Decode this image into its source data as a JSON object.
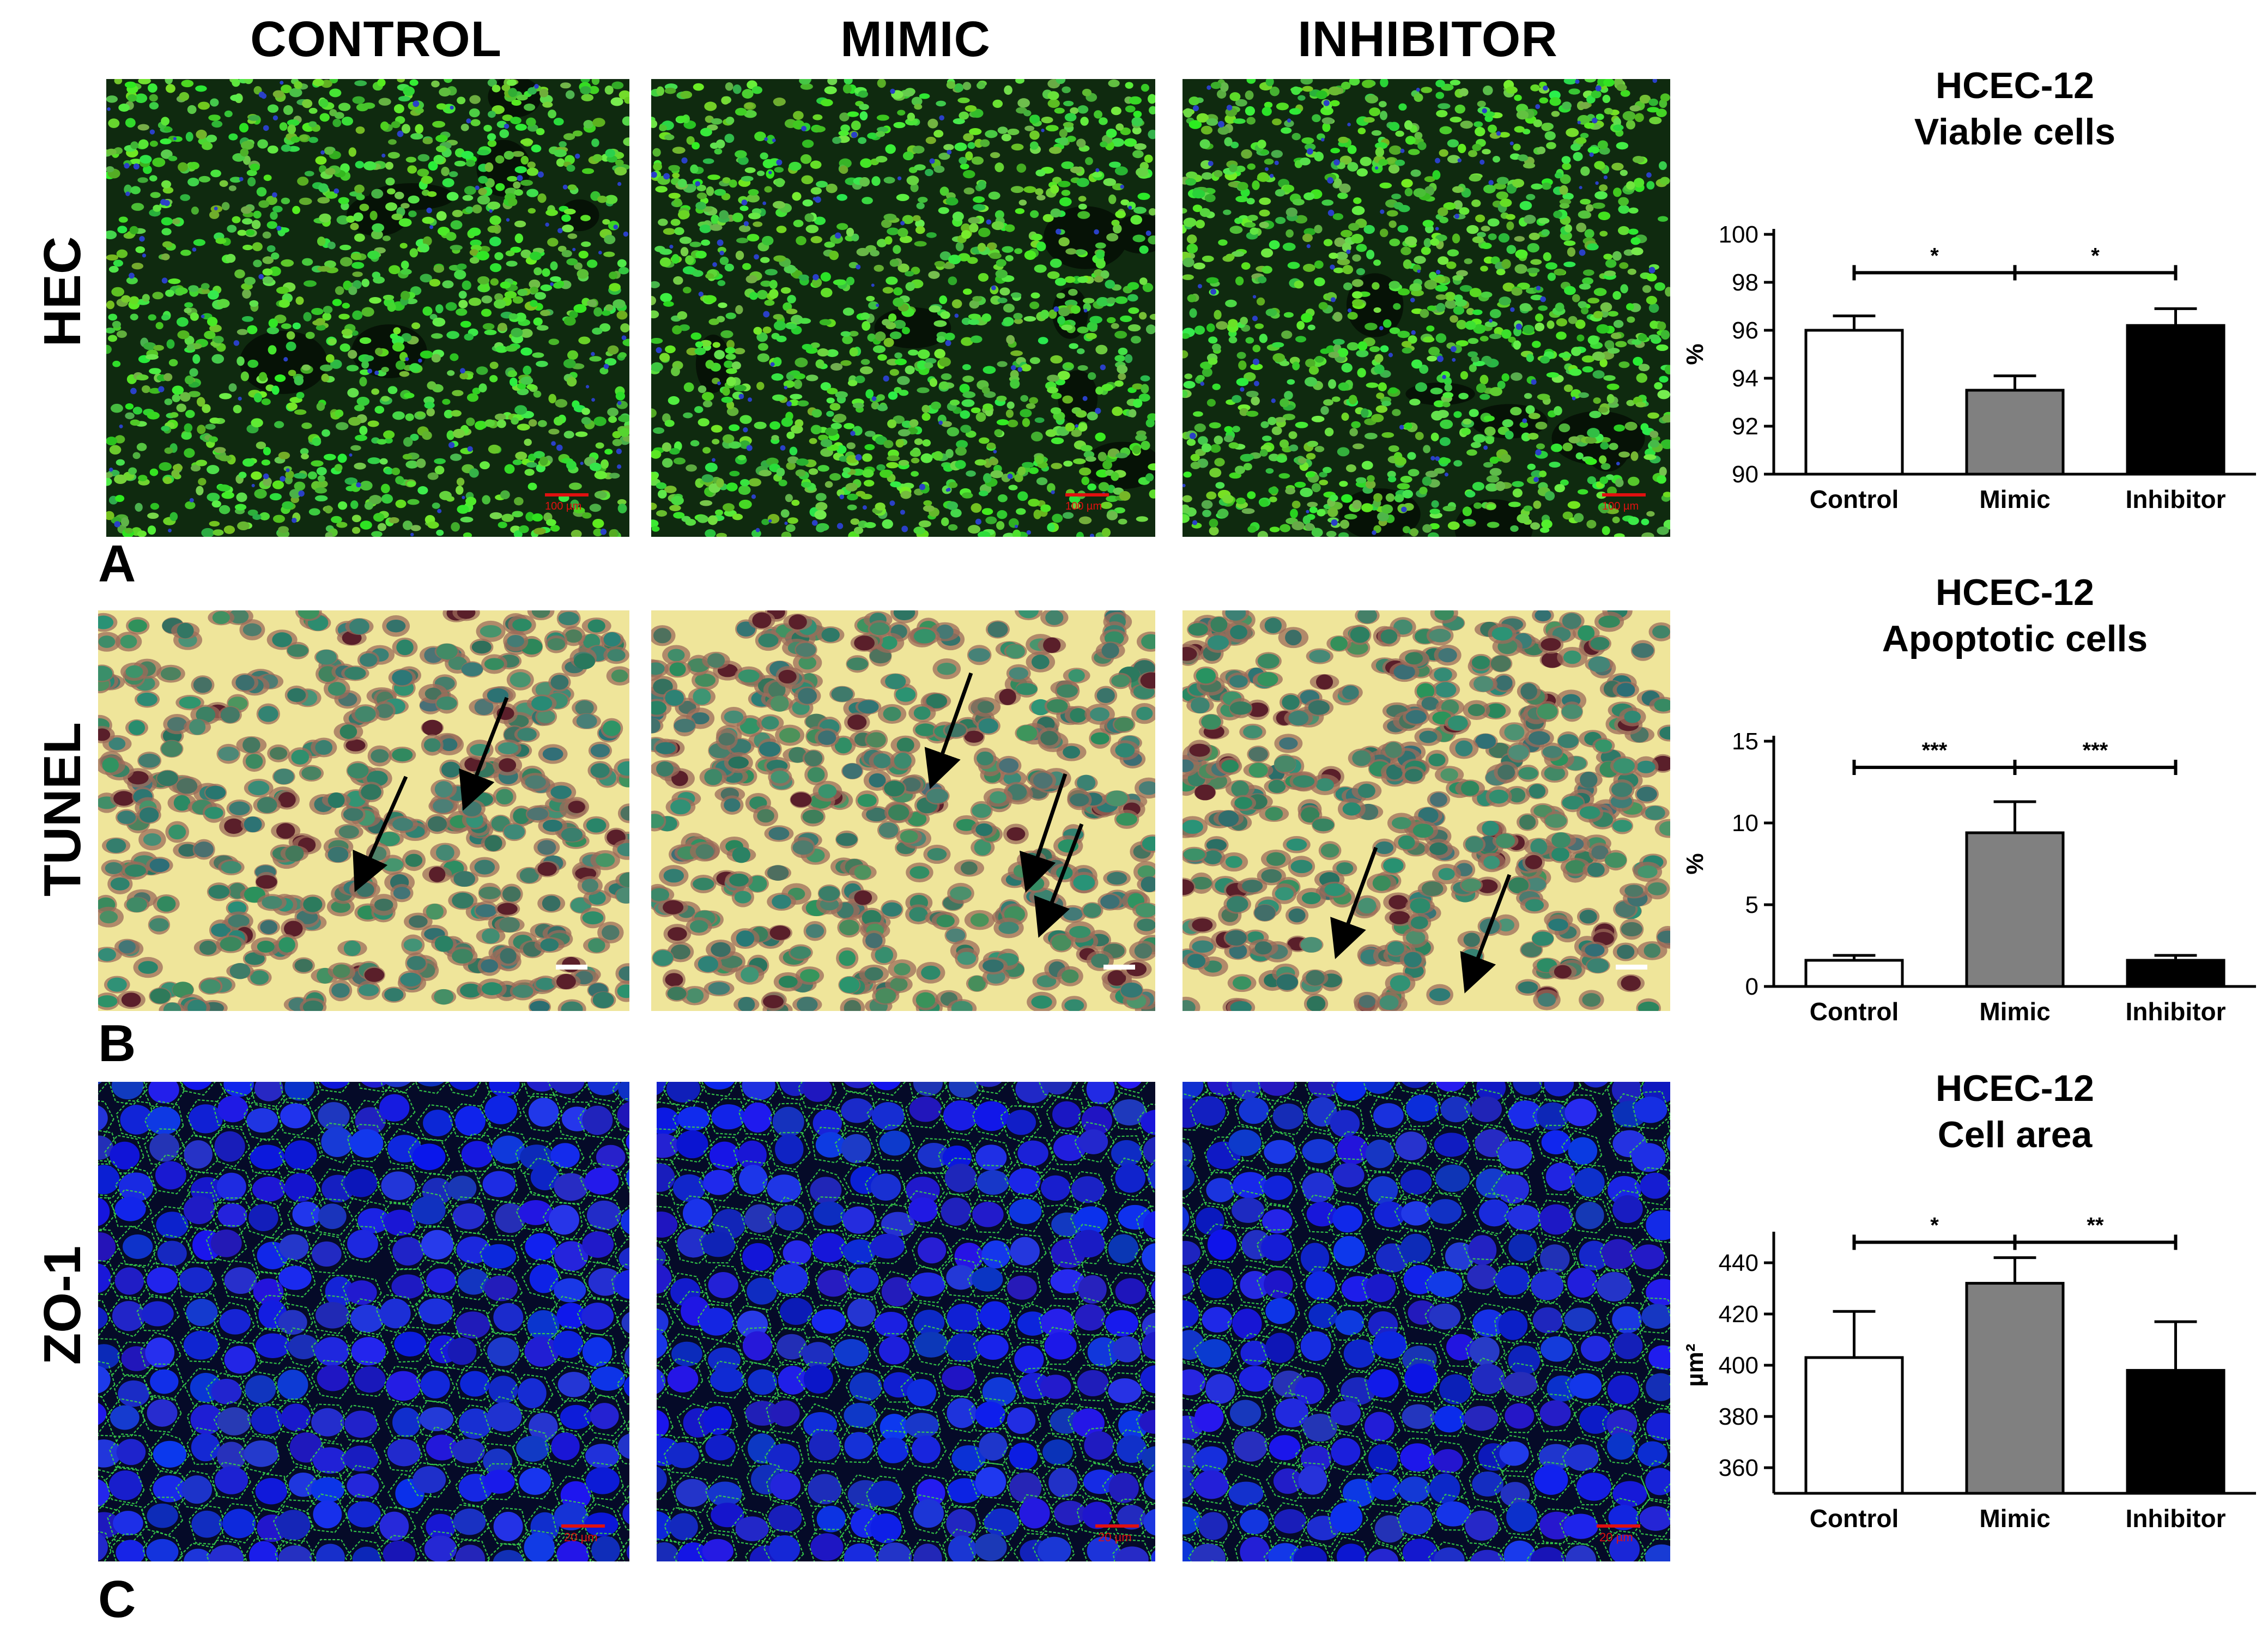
{
  "columns": [
    "CONTROL",
    "MIMIC",
    "INHIBITOR"
  ],
  "rows": [
    {
      "label": "HEC",
      "panel": "A"
    },
    {
      "label": "TUNEL",
      "panel": "B"
    },
    {
      "label": "ZO-1",
      "panel": "C"
    }
  ],
  "micrographs": {
    "hec_scale": "100 µm",
    "zo1_scale": "20 µm"
  },
  "colors": {
    "control": "#ffffff",
    "mimic": "#808080",
    "inhibitor": "#000000",
    "hec_bg": "#0f2a0f",
    "tunel_bg": "#efe59a",
    "zo1_bg": "#050a28"
  },
  "chart_data": [
    {
      "type": "bar",
      "title": "HCEC-12",
      "subtitle": "Viable cells",
      "ylabel": "%",
      "categories": [
        "Control",
        "Mimic",
        "Inhibitor"
      ],
      "values": [
        96.0,
        93.5,
        96.2
      ],
      "errors": [
        0.6,
        0.6,
        0.7
      ],
      "ylim": [
        90,
        100
      ],
      "yticks": [
        90,
        92,
        94,
        96,
        98,
        100
      ],
      "significance": [
        {
          "from": "Control",
          "to": "Mimic",
          "label": "*"
        },
        {
          "from": "Mimic",
          "to": "Inhibitor",
          "label": "*"
        }
      ],
      "sig_y": 98.4
    },
    {
      "type": "bar",
      "title": "HCEC-12",
      "subtitle": "Apoptotic cells",
      "ylabel": "%",
      "categories": [
        "Control",
        "Mimic",
        "Inhibitor"
      ],
      "values": [
        1.6,
        9.4,
        1.6
      ],
      "errors": [
        0.3,
        1.9,
        0.3
      ],
      "ylim": [
        0,
        15
      ],
      "yticks": [
        0,
        5,
        10,
        15
      ],
      "significance": [
        {
          "from": "Control",
          "to": "Mimic",
          "label": "***"
        },
        {
          "from": "Mimic",
          "to": "Inhibitor",
          "label": "***"
        }
      ],
      "sig_y": 13.4
    },
    {
      "type": "bar",
      "title": "HCEC-12",
      "subtitle": "Cell area",
      "ylabel": "µm²",
      "categories": [
        "Control",
        "Mimic",
        "Inhibitor"
      ],
      "values": [
        403,
        432,
        398
      ],
      "errors": [
        18,
        10,
        19
      ],
      "ylim": [
        350,
        450
      ],
      "yticks": [
        360,
        380,
        400,
        420,
        440
      ],
      "significance": [
        {
          "from": "Control",
          "to": "Mimic",
          "label": "*"
        },
        {
          "from": "Mimic",
          "to": "Inhibitor",
          "label": "**"
        }
      ],
      "sig_y": 448
    }
  ]
}
